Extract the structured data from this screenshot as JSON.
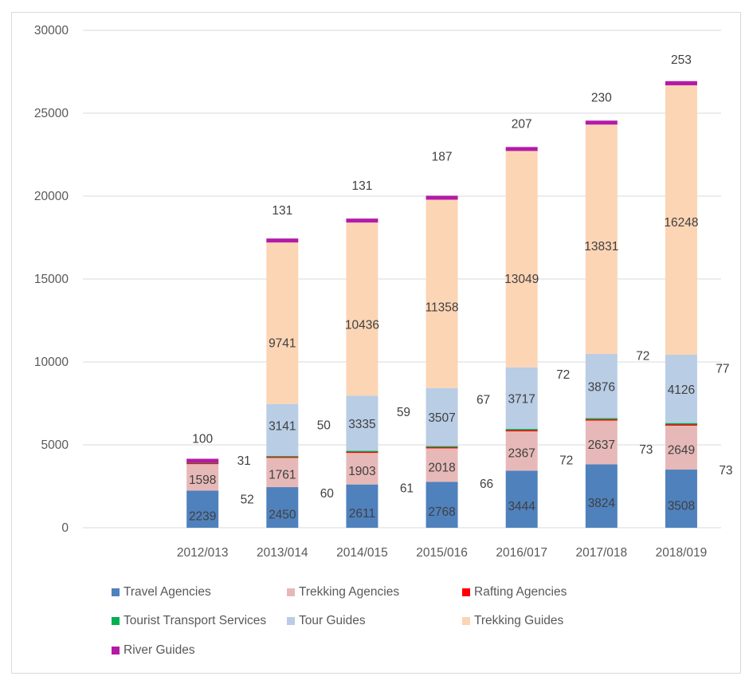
{
  "chart_data": {
    "type": "bar",
    "stacked": true,
    "title": "",
    "xlabel": "",
    "ylabel": "",
    "ylim": [
      0,
      30000
    ],
    "yticks": [
      0,
      5000,
      10000,
      15000,
      20000,
      25000,
      30000
    ],
    "ytick_labels": [
      "0",
      "5000",
      "10000",
      "15000",
      "20000",
      "25000",
      "30000"
    ],
    "grid": true,
    "legend_position": "bottom",
    "categories": [
      "",
      "2012/013",
      "2013/014",
      "2014/015",
      "2015/016",
      "2016/017",
      "2017/018",
      "2018/019"
    ],
    "series": [
      {
        "name": "Travel Agencies",
        "color": "#4f81bd",
        "values": [
          null,
          2239,
          2450,
          2611,
          2768,
          3444,
          3824,
          3508
        ]
      },
      {
        "name": "Trekking Agencies",
        "color": "#e6b9b8",
        "values": [
          null,
          1598,
          1761,
          1903,
          2018,
          2367,
          2637,
          2649
        ]
      },
      {
        "name": "Rafting Agencies",
        "color": "#ff0000",
        "values": [
          null,
          52,
          60,
          61,
          66,
          72,
          73,
          73
        ]
      },
      {
        "name": "Tourist Transport Services",
        "color": "#00b050",
        "values": [
          null,
          31,
          50,
          59,
          67,
          72,
          72,
          77
        ]
      },
      {
        "name": "Tour Guides",
        "color": "#b9cde5",
        "values": [
          null,
          null,
          3141,
          3335,
          3507,
          3717,
          3876,
          4126
        ]
      },
      {
        "name": "Trekking Guides",
        "color": "#fcd5b5",
        "values": [
          null,
          null,
          9741,
          10436,
          11358,
          13049,
          13831,
          16248
        ]
      },
      {
        "name": "River Guides",
        "color": "#b31ba7",
        "values": [
          null,
          100,
          131,
          131,
          187,
          207,
          230,
          253
        ]
      }
    ]
  }
}
